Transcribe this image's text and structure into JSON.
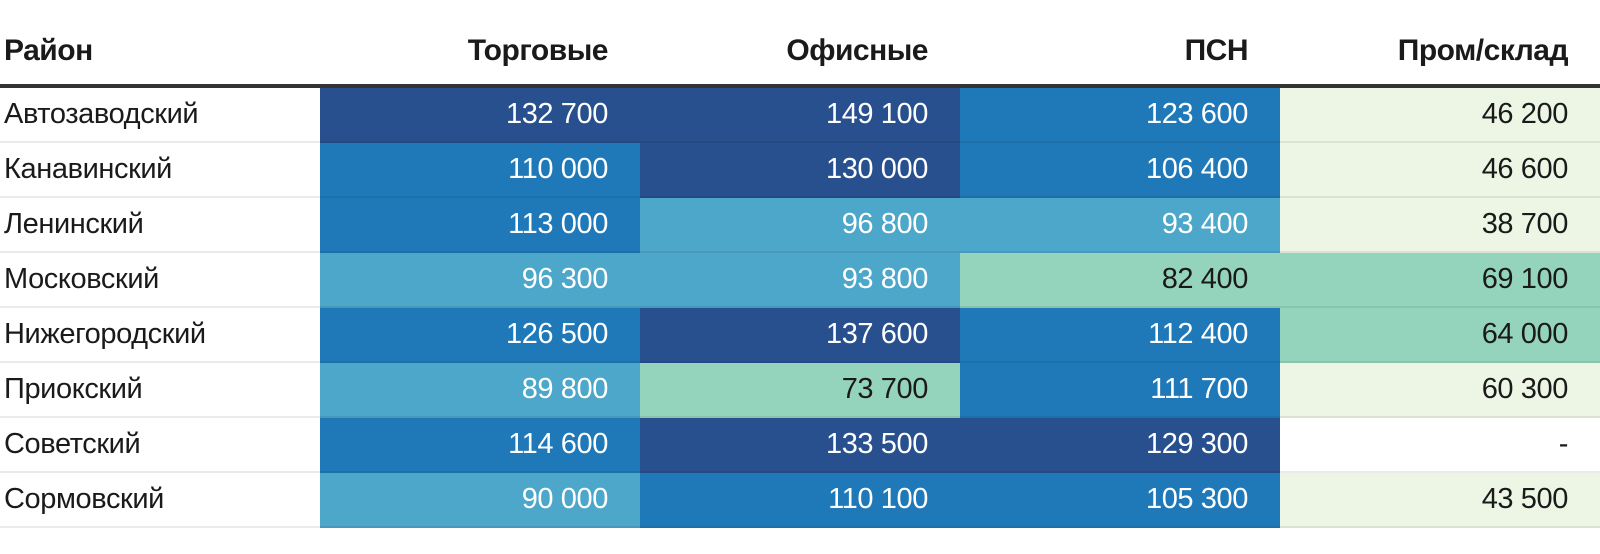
{
  "table": {
    "columns": [
      {
        "label": "Район"
      },
      {
        "label": "Торговые"
      },
      {
        "label": "Офисные"
      },
      {
        "label": "ПСН"
      },
      {
        "label": "Пром/склад"
      }
    ],
    "rows": [
      {
        "district": "Автозаводский",
        "values": [
          "132 700",
          "149 100",
          "123 600",
          "46 200"
        ],
        "buckets": [
          "navy",
          "navy",
          "blue",
          "pale"
        ]
      },
      {
        "district": "Канавинский",
        "values": [
          "110 000",
          "130 000",
          "106 400",
          "46 600"
        ],
        "buckets": [
          "blue",
          "navy",
          "blue",
          "pale"
        ]
      },
      {
        "district": "Ленинский",
        "values": [
          "113 000",
          "96 800",
          "93 400",
          "38 700"
        ],
        "buckets": [
          "blue",
          "lightblue",
          "lightblue",
          "pale"
        ]
      },
      {
        "district": "Московский",
        "values": [
          "96 300",
          "93 800",
          "82 400",
          "69 100"
        ],
        "buckets": [
          "lightblue",
          "lightblue",
          "teal",
          "teal"
        ]
      },
      {
        "district": "Нижегородский",
        "values": [
          "126 500",
          "137 600",
          "112 400",
          "64 000"
        ],
        "buckets": [
          "blue",
          "navy",
          "blue",
          "teal"
        ]
      },
      {
        "district": "Приокский",
        "values": [
          "89 800",
          "73 700",
          "111 700",
          "60 300"
        ],
        "buckets": [
          "lightblue",
          "teal",
          "blue",
          "pale"
        ]
      },
      {
        "district": "Советский",
        "values": [
          "114 600",
          "133 500",
          "129 300",
          "-"
        ],
        "buckets": [
          "blue",
          "navy",
          "navy",
          "white"
        ]
      },
      {
        "district": "Сормовский",
        "values": [
          "90 000",
          "110 100",
          "105 300",
          "43 500"
        ],
        "buckets": [
          "lightblue",
          "blue",
          "blue",
          "pale"
        ]
      }
    ]
  },
  "palette": {
    "navy": "#28508F",
    "blue": "#1F79B8",
    "lightblue": "#4CA7CA",
    "teal": "#95D4BC",
    "pale": "#EDF6E5",
    "white": "#FFFFFF"
  },
  "text_colors": {
    "on_dark": "#FFFFFF",
    "on_light": "#1A1A1A"
  },
  "header_rule_color": "#333333",
  "chart_data": {
    "type": "heatmap",
    "columns": [
      "Торговые",
      "Офисные",
      "ПСН",
      "Пром/склад"
    ],
    "rows": [
      "Автозаводский",
      "Канавинский",
      "Ленинский",
      "Московский",
      "Нижегородский",
      "Приокский",
      "Советский",
      "Сормовский"
    ],
    "values": [
      [
        132700,
        149100,
        123600,
        46200
      ],
      [
        110000,
        130000,
        106400,
        46600
      ],
      [
        113000,
        96800,
        93400,
        38700
      ],
      [
        96300,
        93800,
        82400,
        69100
      ],
      [
        126500,
        137600,
        112400,
        64000
      ],
      [
        89800,
        73700,
        111700,
        60300
      ],
      [
        114600,
        133500,
        129300,
        null
      ],
      [
        90000,
        110100,
        105300,
        43500
      ]
    ],
    "missing_value_display": "-",
    "row_header_label": "Район",
    "color_scale": "high values dark navy blue -> medium blue -> light blue -> teal green -> pale green for low values",
    "legend": "none",
    "grid": "thin light row separators"
  }
}
